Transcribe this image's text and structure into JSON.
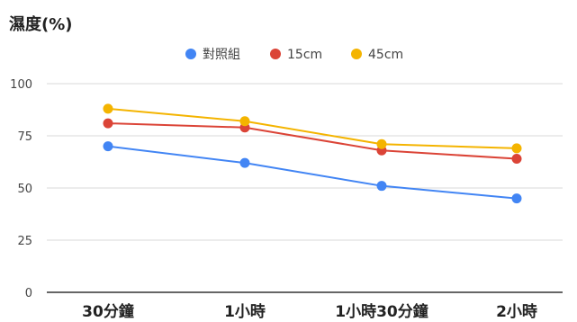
{
  "chart_data": {
    "type": "line",
    "title": "濕度(%)",
    "xlabel": "",
    "ylabel": "",
    "categories": [
      "30分鐘",
      "1小時",
      "1小時30分鐘",
      "2小時"
    ],
    "ylim": [
      0,
      100
    ],
    "yticks": [
      0,
      25,
      50,
      75,
      100
    ],
    "grid": true,
    "legend_position": "top",
    "series": [
      {
        "name": "對照組",
        "color": "#4285F4",
        "values": [
          70,
          62,
          51,
          45
        ]
      },
      {
        "name": "15cm",
        "color": "#DB4437",
        "values": [
          81,
          79,
          68,
          64
        ]
      },
      {
        "name": "45cm",
        "color": "#F4B400",
        "values": [
          88,
          82,
          71,
          69
        ]
      }
    ]
  }
}
